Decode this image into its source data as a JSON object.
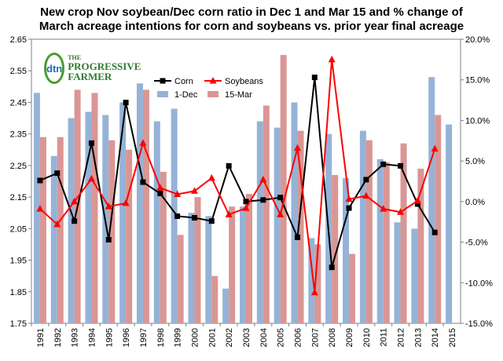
{
  "chart_data": {
    "type": "bar",
    "title_line1": "New crop Nov soybean/Dec corn ratio in Dec 1 and Mar 15 and % change of",
    "title_line2": "March acreage intentions for corn and soybeans vs. prior year final acreage",
    "categories": [
      "1991",
      "1992",
      "1993",
      "1994",
      "1995",
      "1996",
      "1997",
      "1998",
      "1999",
      "2000",
      "2001",
      "2002",
      "2003",
      "2004",
      "2005",
      "2006",
      "2007",
      "2008",
      "2009",
      "2010",
      "2011",
      "2012",
      "2013",
      "2014",
      "2015"
    ],
    "left_axis": {
      "min": 1.75,
      "max": 2.65,
      "ticks": [
        "1.75",
        "1.85",
        "1.95",
        "2.05",
        "2.15",
        "2.25",
        "2.35",
        "2.45",
        "2.55",
        "2.65"
      ]
    },
    "right_axis": {
      "min": -15,
      "max": 20,
      "ticks": [
        "-15.0%",
        "-10.0%",
        "-5.0%",
        "0.0%",
        "5.0%",
        "10.0%",
        "15.0%",
        "20.0%"
      ]
    },
    "bar_series": [
      {
        "name": "1-Dec",
        "color": "#95b3d7",
        "axis": "left",
        "values": [
          2.48,
          2.28,
          2.4,
          2.42,
          2.41,
          2.45,
          2.51,
          2.39,
          2.43,
          2.1,
          2.09,
          1.86,
          2.12,
          2.39,
          2.37,
          2.45,
          2.02,
          2.35,
          2.21,
          2.36,
          2.27,
          2.07,
          2.05,
          2.53,
          2.38
        ]
      },
      {
        "name": "15-Mar",
        "color": "#da9694",
        "axis": "left",
        "values": [
          2.34,
          2.34,
          2.49,
          2.48,
          2.33,
          2.3,
          2.49,
          2.23,
          2.03,
          2.15,
          1.9,
          2.12,
          2.16,
          2.44,
          2.6,
          2.36,
          2.0,
          2.22,
          1.97,
          2.33,
          2.26,
          2.32,
          2.24,
          2.41,
          null
        ]
      }
    ],
    "line_series": [
      {
        "name": "Corn",
        "color": "#000000",
        "marker": "square",
        "axis": "right",
        "values": [
          2.6,
          3.5,
          -2.4,
          7.2,
          -4.7,
          12.2,
          2.4,
          1.0,
          -1.8,
          -2.0,
          -2.4,
          4.4,
          0.0,
          0.2,
          0.5,
          -4.4,
          15.3,
          -8.1,
          -0.8,
          2.7,
          4.6,
          4.4,
          -0.3,
          -3.8,
          null
        ]
      },
      {
        "name": "Soybeans",
        "color": "#ff0000",
        "marker": "triangle",
        "axis": "right",
        "values": [
          -0.9,
          -2.8,
          0.0,
          2.8,
          -0.6,
          -0.2,
          7.2,
          1.7,
          0.9,
          1.3,
          2.9,
          -1.6,
          -0.8,
          2.7,
          -1.6,
          6.6,
          -11.2,
          17.5,
          0.3,
          0.7,
          -0.9,
          -1.3,
          0.1,
          6.5,
          null
        ]
      }
    ],
    "legend": {
      "placement": "top-center",
      "row1": [
        "Corn",
        "Soybeans"
      ],
      "row2": [
        "1-Dec",
        "15-Mar"
      ]
    },
    "grid": false
  },
  "logo": {
    "mark": "dtn",
    "line1": "THE",
    "line2": "PROGRESSIVE",
    "line3": "FARMER"
  }
}
